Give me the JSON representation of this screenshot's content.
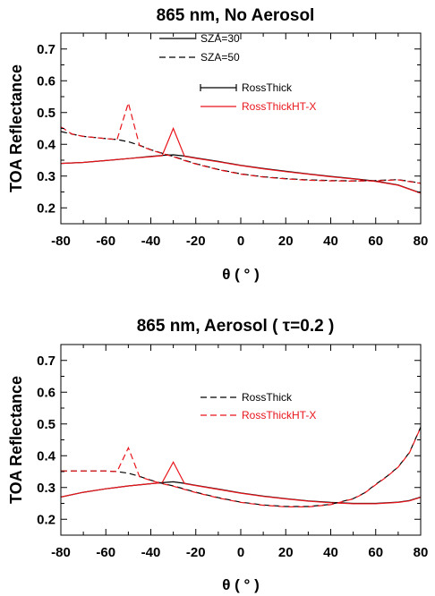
{
  "chart_data": [
    {
      "type": "line",
      "title": "865 nm, No Aerosol",
      "xlabel": "θ ( ° )",
      "ylabel": "TOA Reflectance",
      "xlim": [
        -80,
        80
      ],
      "ylim": [
        0.15,
        0.75
      ],
      "xticks": [
        "-80",
        "-60",
        "-40",
        "-20",
        "0",
        "20",
        "40",
        "60",
        "80"
      ],
      "yticks": [
        "0.2",
        "0.3",
        "0.4",
        "0.5",
        "0.6",
        "0.7"
      ],
      "grid": false,
      "legends": [
        {
          "placement": "top-center",
          "entries": [
            {
              "label": "SZA=30",
              "style": "solid",
              "color": "#000000"
            },
            {
              "label": "SZA=50",
              "style": "dashed",
              "color": "#000000"
            }
          ]
        },
        {
          "placement": "center-right",
          "entries": [
            {
              "label": "RossThick",
              "style": "solid-plus",
              "color": "#000000"
            },
            {
              "label": "RossThickHT-X",
              "style": "solid",
              "color": "#e8151b"
            }
          ]
        }
      ],
      "series": [
        {
          "key": "rt_sza30",
          "color": "#000000",
          "dash": false,
          "x": [
            -80,
            -70,
            -60,
            -50,
            -40,
            -35,
            -30,
            -25,
            -20,
            -10,
            0,
            10,
            20,
            30,
            40,
            50,
            60,
            70,
            80
          ],
          "y": [
            0.34,
            0.343,
            0.349,
            0.355,
            0.362,
            0.365,
            0.367,
            0.363,
            0.357,
            0.346,
            0.334,
            0.324,
            0.315,
            0.307,
            0.299,
            0.292,
            0.284,
            0.272,
            0.247
          ]
        },
        {
          "key": "htx_sza30",
          "color": "#e8151b",
          "dash": false,
          "x": [
            -80,
            -70,
            -60,
            -50,
            -40,
            -35,
            -30,
            -25,
            -20,
            -10,
            0,
            10,
            20,
            30,
            40,
            50,
            60,
            70,
            80
          ],
          "y": [
            0.34,
            0.343,
            0.349,
            0.355,
            0.361,
            0.364,
            0.45,
            0.362,
            0.356,
            0.345,
            0.333,
            0.323,
            0.314,
            0.306,
            0.298,
            0.291,
            0.283,
            0.271,
            0.246
          ]
        },
        {
          "key": "rt_sza50",
          "color": "#000000",
          "dash": true,
          "x": [
            -80,
            -75,
            -70,
            -60,
            -55,
            -50,
            -45,
            -40,
            -35,
            -30,
            -25,
            -20,
            -10,
            0,
            10,
            20,
            30,
            40,
            50,
            60,
            70,
            80
          ],
          "y": [
            0.44,
            0.432,
            0.425,
            0.418,
            0.415,
            0.408,
            0.397,
            0.383,
            0.372,
            0.362,
            0.35,
            0.339,
            0.321,
            0.307,
            0.298,
            0.292,
            0.288,
            0.286,
            0.285,
            0.286,
            0.289,
            0.278
          ]
        },
        {
          "key": "htx_sza50",
          "color": "#e8151b",
          "dash": true,
          "x": [
            -80,
            -75,
            -70,
            -60,
            -55,
            -50,
            -45,
            -40,
            -35,
            -30,
            -25,
            -20,
            -10,
            0,
            10,
            20,
            30,
            40,
            50,
            60,
            70,
            80
          ],
          "y": [
            0.455,
            0.432,
            0.425,
            0.418,
            0.415,
            0.53,
            0.396,
            0.382,
            0.371,
            0.361,
            0.349,
            0.338,
            0.32,
            0.306,
            0.297,
            0.291,
            0.287,
            0.285,
            0.284,
            0.285,
            0.288,
            0.277
          ]
        }
      ]
    },
    {
      "type": "line",
      "title": "865 nm, Aerosol ( τ=0.2 )",
      "xlabel": "θ ( ° )",
      "ylabel": "TOA Reflectance",
      "xlim": [
        -80,
        80
      ],
      "ylim": [
        0.15,
        0.75
      ],
      "xticks": [
        "-80",
        "-60",
        "-40",
        "-20",
        "0",
        "20",
        "40",
        "60",
        "80"
      ],
      "yticks": [
        "0.2",
        "0.3",
        "0.4",
        "0.5",
        "0.6",
        "0.7"
      ],
      "grid": false,
      "legends": [
        {
          "placement": "center-right",
          "entries": [
            {
              "label": "RossThick",
              "style": "dashed",
              "color": "#000000"
            },
            {
              "label": "RossThickHT-X",
              "style": "dashed",
              "color": "#e8151b"
            }
          ]
        }
      ],
      "series": [
        {
          "key": "rt_sza30",
          "color": "#000000",
          "dash": false,
          "x": [
            -80,
            -70,
            -60,
            -50,
            -40,
            -35,
            -30,
            -25,
            -20,
            -10,
            0,
            10,
            20,
            30,
            40,
            50,
            60,
            70,
            75,
            80
          ],
          "y": [
            0.27,
            0.285,
            0.296,
            0.305,
            0.312,
            0.315,
            0.318,
            0.313,
            0.307,
            0.295,
            0.283,
            0.273,
            0.265,
            0.258,
            0.253,
            0.25,
            0.25,
            0.254,
            0.259,
            0.27
          ]
        },
        {
          "key": "htx_sza30",
          "color": "#e8151b",
          "dash": false,
          "x": [
            -80,
            -70,
            -60,
            -50,
            -40,
            -35,
            -30,
            -25,
            -20,
            -10,
            0,
            10,
            20,
            30,
            40,
            50,
            60,
            70,
            75,
            80
          ],
          "y": [
            0.27,
            0.285,
            0.296,
            0.305,
            0.312,
            0.315,
            0.38,
            0.312,
            0.306,
            0.294,
            0.282,
            0.272,
            0.264,
            0.257,
            0.252,
            0.249,
            0.249,
            0.253,
            0.258,
            0.269
          ]
        },
        {
          "key": "rt_sza50",
          "color": "#000000",
          "dash": true,
          "x": [
            -80,
            -70,
            -60,
            -55,
            -50,
            -45,
            -40,
            -35,
            -30,
            -25,
            -20,
            -10,
            0,
            10,
            20,
            30,
            40,
            50,
            55,
            60,
            65,
            70,
            75,
            80
          ],
          "y": [
            0.352,
            0.352,
            0.352,
            0.35,
            0.345,
            0.335,
            0.323,
            0.313,
            0.305,
            0.295,
            0.285,
            0.268,
            0.254,
            0.245,
            0.24,
            0.24,
            0.247,
            0.265,
            0.283,
            0.31,
            0.335,
            0.365,
            0.41,
            0.49
          ]
        },
        {
          "key": "htx_sza50",
          "color": "#e8151b",
          "dash": true,
          "x": [
            -80,
            -70,
            -60,
            -55,
            -50,
            -45,
            -40,
            -35,
            -30,
            -25,
            -20,
            -10,
            0,
            10,
            20,
            30,
            40,
            50,
            55,
            60,
            65,
            70,
            75,
            80
          ],
          "y": [
            0.352,
            0.352,
            0.352,
            0.35,
            0.425,
            0.334,
            0.322,
            0.312,
            0.304,
            0.294,
            0.284,
            0.267,
            0.253,
            0.244,
            0.239,
            0.239,
            0.246,
            0.264,
            0.282,
            0.309,
            0.334,
            0.364,
            0.409,
            0.489
          ]
        }
      ]
    }
  ]
}
